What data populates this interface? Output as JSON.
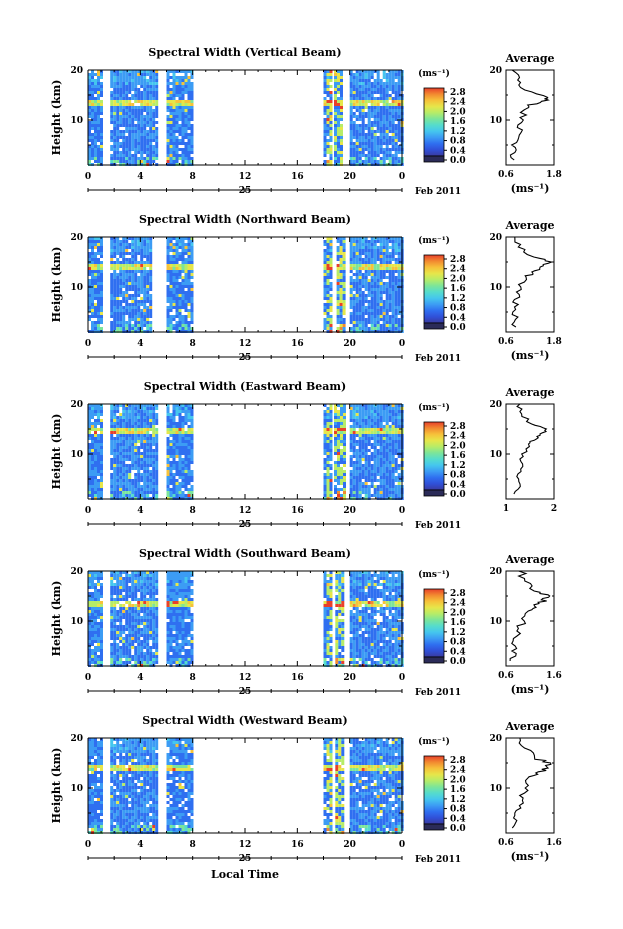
{
  "colors": {
    "colormap": [
      "#3a3aa0",
      "#3050d8",
      "#2f6ff0",
      "#3c9cf4",
      "#45c6ee",
      "#55dccc",
      "#7ce59a",
      "#b6ec68",
      "#e6e64a",
      "#f6c23a",
      "#f28a30",
      "#e8402a"
    ],
    "colorbar_stops": [
      "#e8402a",
      "#f28a30",
      "#f6c23a",
      "#e6e64a",
      "#b6ec68",
      "#7ce59a",
      "#55dccc",
      "#45c6ee",
      "#3c9cf4",
      "#2f6ff0",
      "#3050d8",
      "#3a3aa0"
    ],
    "colorbar_dark": "#2b2b58",
    "gap": "#ffffff",
    "axis": "#000000"
  },
  "shared": {
    "y_label": "Height (km)",
    "x_label": "Local Time",
    "x_ticks": [
      "0",
      "4",
      "8",
      "12",
      "16",
      "20",
      "0"
    ],
    "date_label": "25",
    "month_label": "Feb 2011",
    "colorbar_unit": "(ms⁻¹)",
    "colorbar_ticks": [
      "2.8",
      "2.4",
      "2.0",
      "1.6",
      "1.2",
      "0.8",
      "0.4",
      "0.0"
    ],
    "avg_title": "Average",
    "avg_unit": "(ms⁻¹)",
    "y_ticks": [
      "20",
      "10"
    ]
  },
  "chart_data": [
    {
      "type": "heatmap",
      "title": "Spectral Width (Vertical Beam)",
      "xlabel": "Local Time",
      "ylabel": "Height (km)",
      "xlim": [
        0,
        24
      ],
      "ylim": [
        1,
        20
      ],
      "color_range": [
        0.0,
        3.0
      ],
      "data_time_ranges": [
        [
          0,
          1.1
        ],
        [
          1.7,
          5.2
        ],
        [
          6.0,
          8.0
        ],
        [
          18.0,
          18.5
        ],
        [
          18.8,
          19.3
        ],
        [
          20.0,
          24.0
        ]
      ],
      "high_band_heights": [
        13.0,
        14.5
      ],
      "profile": {
        "title": "Average",
        "xlabel": "(ms⁻¹)",
        "xticks": [
          "0.6",
          "1.8"
        ],
        "xlim": [
          0.6,
          1.8
        ],
        "heights": [
          2,
          4,
          6,
          8,
          10,
          12,
          13,
          14,
          14.5,
          16,
          18,
          20
        ],
        "values": [
          0.75,
          0.8,
          0.85,
          0.95,
          1.0,
          1.05,
          1.2,
          1.6,
          1.7,
          1.1,
          0.9,
          0.8
        ]
      }
    },
    {
      "type": "heatmap",
      "title": "Spectral Width (Northward Beam)",
      "xlabel": "Local Time",
      "ylabel": "Height (km)",
      "xlim": [
        0,
        24
      ],
      "ylim": [
        1,
        20
      ],
      "color_range": [
        0.0,
        3.0
      ],
      "data_time_ranges": [
        [
          0,
          1.1
        ],
        [
          1.7,
          4.9
        ],
        [
          6.0,
          8.0
        ],
        [
          18.0,
          18.5
        ],
        [
          19.0,
          19.5
        ],
        [
          20.0,
          24.0
        ]
      ],
      "high_band_heights": [
        13.5,
        15.0
      ],
      "profile": {
        "title": "Average",
        "xlabel": "(ms⁻¹)",
        "xticks": [
          "0.6",
          "1.8"
        ],
        "xlim": [
          0.6,
          1.8
        ],
        "heights": [
          2,
          4,
          6,
          8,
          10,
          12,
          13,
          14,
          15,
          16,
          18,
          20
        ],
        "values": [
          0.8,
          0.85,
          0.8,
          0.9,
          0.95,
          1.1,
          1.3,
          1.5,
          1.7,
          1.3,
          0.9,
          0.8
        ]
      }
    },
    {
      "type": "heatmap",
      "title": "Spectral Width (Eastward Beam)",
      "xlabel": "Local Time",
      "ylabel": "Height (km)",
      "xlim": [
        0,
        24
      ],
      "ylim": [
        1,
        20
      ],
      "color_range": [
        0.0,
        3.0
      ],
      "data_time_ranges": [
        [
          0,
          1.1
        ],
        [
          1.7,
          5.2
        ],
        [
          6.0,
          8.0
        ],
        [
          18.0,
          18.5
        ],
        [
          18.8,
          19.5
        ],
        [
          20.0,
          24.0
        ]
      ],
      "high_band_heights": [
        14.0,
        15.5
      ],
      "profile": {
        "title": "Average",
        "xlabel": "",
        "xticks": [
          "1",
          "2"
        ],
        "xlim": [
          0.5,
          2.0
        ],
        "heights": [
          2,
          4,
          6,
          8,
          10,
          12,
          13,
          14,
          15,
          16,
          18,
          20
        ],
        "values": [
          0.8,
          0.9,
          0.85,
          1.0,
          1.05,
          1.2,
          1.4,
          1.6,
          1.8,
          1.3,
          1.0,
          0.9
        ]
      }
    },
    {
      "type": "heatmap",
      "title": "Spectral Width (Southward Beam)",
      "xlabel": "Local Time",
      "ylabel": "Height (km)",
      "xlim": [
        0,
        24
      ],
      "ylim": [
        1,
        20
      ],
      "color_range": [
        0.0,
        3.0
      ],
      "data_time_ranges": [
        [
          0,
          1.1
        ],
        [
          1.7,
          5.3
        ],
        [
          6.0,
          8.0
        ],
        [
          18.0,
          18.5
        ],
        [
          18.9,
          19.4
        ],
        [
          20.0,
          24.0
        ]
      ],
      "high_band_heights": [
        13.0,
        14.5
      ],
      "profile": {
        "title": "Average",
        "xlabel": "(ms⁻¹)",
        "xticks": [
          "0.6",
          "1.6"
        ],
        "xlim": [
          0.6,
          1.6
        ],
        "heights": [
          2,
          4,
          6,
          8,
          10,
          12,
          13,
          14,
          15,
          16,
          18,
          20
        ],
        "values": [
          0.7,
          0.75,
          0.8,
          0.85,
          0.95,
          1.05,
          1.2,
          1.4,
          1.5,
          1.2,
          1.0,
          0.9
        ]
      }
    },
    {
      "type": "heatmap",
      "title": "Spectral Width (Westward Beam)",
      "xlabel": "Local Time",
      "ylabel": "Height (km)",
      "xlim": [
        0,
        24
      ],
      "ylim": [
        1,
        20
      ],
      "color_range": [
        0.0,
        3.0
      ],
      "data_time_ranges": [
        [
          0,
          1.1
        ],
        [
          1.7,
          5.2
        ],
        [
          6.0,
          8.0
        ],
        [
          18.0,
          18.5
        ],
        [
          18.9,
          19.4
        ],
        [
          20.0,
          24.0
        ]
      ],
      "high_band_heights": [
        13.5,
        15.0
      ],
      "profile": {
        "title": "Average",
        "xlabel": "(ms⁻¹)",
        "xticks": [
          "0.6",
          "1.6"
        ],
        "xlim": [
          0.6,
          1.6
        ],
        "heights": [
          2,
          4,
          6,
          8,
          10,
          12,
          13,
          14,
          15,
          16,
          18,
          20
        ],
        "values": [
          0.75,
          0.8,
          0.85,
          0.9,
          1.0,
          1.1,
          1.25,
          1.45,
          1.5,
          1.2,
          1.0,
          0.9
        ]
      }
    }
  ]
}
